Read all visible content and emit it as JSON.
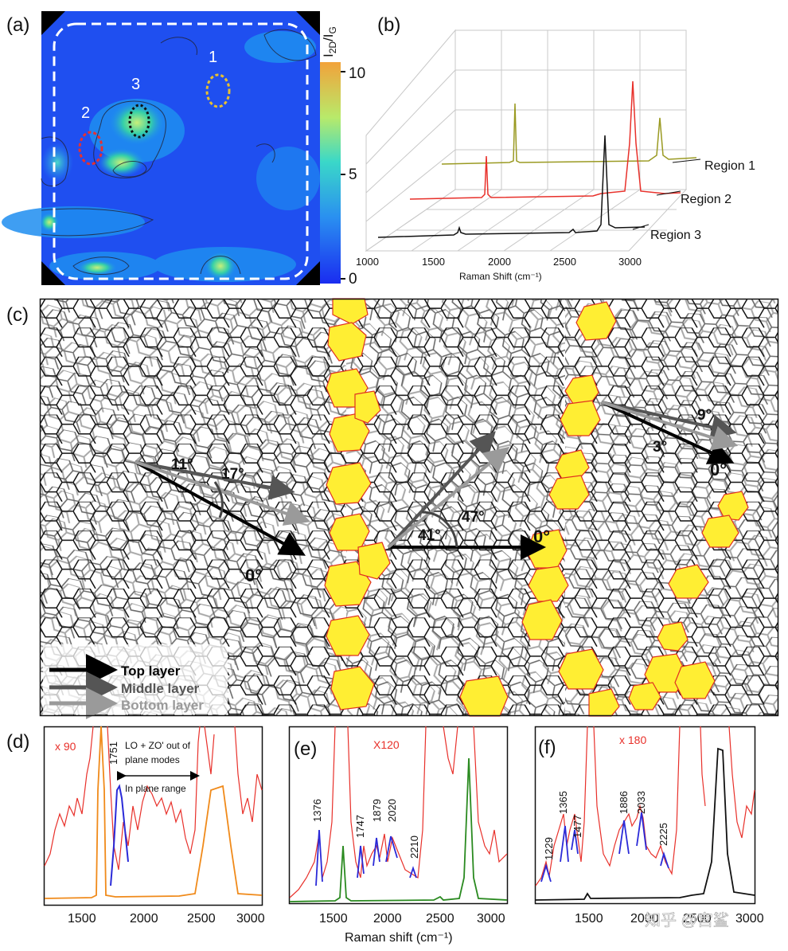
{
  "panels": {
    "a": {
      "label": "(a)",
      "region_labels": [
        "1",
        "2",
        "3"
      ],
      "colorbar": {
        "title_main": "I",
        "title_sub1": "2D",
        "title_mid": "/I",
        "title_sub2": "G",
        "ticks": [
          "10",
          "5",
          "0"
        ],
        "range": [
          0,
          10
        ]
      },
      "colors": {
        "low": "#1a3cf0",
        "mid": "#21a0f0",
        "high": "#f2a23a"
      }
    },
    "b": {
      "label": "(b)",
      "xlabel": "Raman Shift (cm⁻¹)",
      "xticks": [
        "1000",
        "1500",
        "2000",
        "2500",
        "3000"
      ],
      "series": [
        {
          "name": "Region 1",
          "color": "#9a9a22"
        },
        {
          "name": "Region 2",
          "color": "#e8302a"
        },
        {
          "name": "Region 3",
          "color": "#111111"
        }
      ]
    },
    "c": {
      "label": "(c)",
      "angles_left": [
        "11°",
        "17°",
        "0°"
      ],
      "angles_middle": [
        "41°",
        "47°",
        "0°"
      ],
      "angles_right": [
        "9°",
        "3°",
        "0°"
      ],
      "legend": [
        "Top layer",
        "Middle layer",
        "Bottom layer"
      ],
      "colors": {
        "top": "#000000",
        "middle": "#555555",
        "bottom": "#9a9a9a",
        "highlight": "#ffee33",
        "highlight_edge": "#e03020"
      }
    },
    "d": {
      "label": "(d)",
      "multiplier": "x 90",
      "peak_label": "1751",
      "annotation_1": "LO + ZO' out of",
      "annotation_2": "plane modes",
      "annotation_3": "In plane range",
      "xticks": [
        "1500",
        "2000",
        "2500",
        "3000"
      ]
    },
    "e": {
      "label": "(e)",
      "multiplier": "X120",
      "peaks": [
        "1376",
        "1747",
        "1879",
        "2020",
        "2210"
      ],
      "xlabel": "Raman shift (cm⁻¹)",
      "xticks": [
        "1500",
        "2000",
        "2500",
        "3000"
      ]
    },
    "f": {
      "label": "(f)",
      "multiplier": "x 180",
      "peaks": [
        "1229",
        "1365",
        "1477",
        "1886",
        "2033",
        "2225"
      ],
      "xticks": [
        "1500",
        "2000",
        "2500",
        "3000"
      ]
    }
  },
  "watermark": "知乎 @宫鲨"
}
